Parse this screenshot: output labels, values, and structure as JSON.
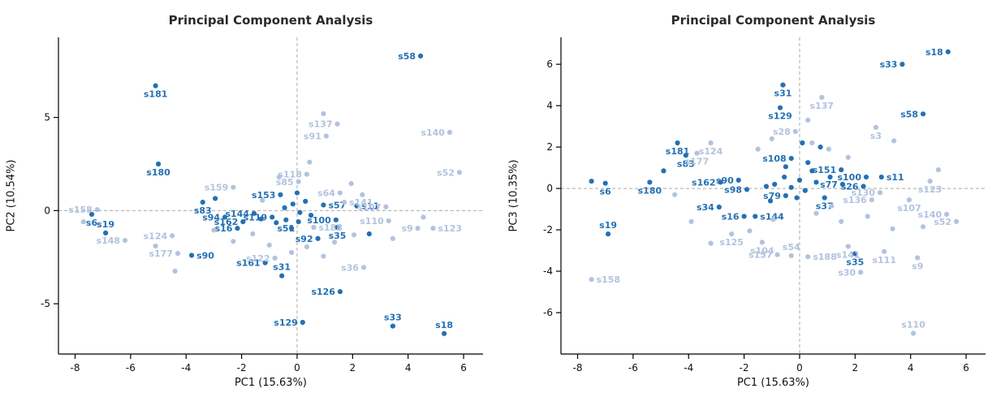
{
  "page": {
    "background": "#ffffff"
  },
  "chart_data": [
    {
      "type": "scatter",
      "title": "Principal Component Analysis",
      "xlabel": "PC1 (15.63%)",
      "ylabel": "PC2 (10.54%)",
      "xlim": [
        -8.6,
        6.7
      ],
      "ylim": [
        -7.7,
        9.3
      ],
      "xticks": [
        -8,
        -6,
        -4,
        -2,
        0,
        2,
        4,
        6
      ],
      "yticks": [
        -5,
        0,
        5
      ],
      "zero_lines": true,
      "grid": false,
      "legend": null,
      "colors": {
        "dark": "#2470b3",
        "light": "#b2c3de"
      },
      "points": [
        {
          "x": 4.45,
          "y": 8.3,
          "c": "dark",
          "label": "s58",
          "pos": "l"
        },
        {
          "x": -5.1,
          "y": 6.7,
          "c": "dark",
          "label": "s181",
          "pos": "b"
        },
        {
          "x": -5.0,
          "y": 2.5,
          "c": "dark",
          "label": "s180",
          "pos": "b"
        },
        {
          "x": -3.4,
          "y": 0.45,
          "c": "dark",
          "label": "s83",
          "pos": "b"
        },
        {
          "x": -7.4,
          "y": -0.2,
          "c": "dark",
          "label": "s6",
          "pos": "b"
        },
        {
          "x": -6.9,
          "y": -1.2,
          "c": "dark",
          "label": "s19",
          "pos": "a"
        },
        {
          "x": -2.6,
          "y": -0.35,
          "c": "dark",
          "label": "s94",
          "pos": "l"
        },
        {
          "x": -1.95,
          "y": -0.6,
          "c": "dark",
          "label": "s162",
          "pos": "l"
        },
        {
          "x": -2.15,
          "y": -0.95,
          "c": "dark",
          "label": "s16",
          "pos": "l"
        },
        {
          "x": -1.55,
          "y": -0.15,
          "c": "dark",
          "label": "s144",
          "pos": "l"
        },
        {
          "x": -1.15,
          "y": -2.8,
          "c": "dark",
          "label": "s161",
          "pos": "l"
        },
        {
          "x": -0.55,
          "y": -3.5,
          "c": "dark",
          "label": "s31",
          "pos": "a"
        },
        {
          "x": 0.2,
          "y": -6.0,
          "c": "dark",
          "label": "s129",
          "pos": "l"
        },
        {
          "x": 1.55,
          "y": -4.35,
          "c": "dark",
          "label": "s126",
          "pos": "l"
        },
        {
          "x": 3.45,
          "y": -6.2,
          "c": "dark",
          "label": "s33",
          "pos": "a"
        },
        {
          "x": 5.3,
          "y": -6.6,
          "c": "dark",
          "label": "s18",
          "pos": "a"
        },
        {
          "x": 1.45,
          "y": -0.9,
          "c": "dark",
          "label": "s35",
          "pos": "b"
        },
        {
          "x": 1.4,
          "y": -0.5,
          "c": "dark",
          "label": "s100",
          "pos": "l"
        },
        {
          "x": 2.15,
          "y": 0.25,
          "c": "dark",
          "label": "s11",
          "pos": "r"
        },
        {
          "x": 0.75,
          "y": -1.5,
          "c": "dark",
          "label": "s92",
          "pos": "l"
        },
        {
          "x": -3.8,
          "y": -2.4,
          "c": "dark",
          "label": "s90",
          "pos": "r"
        },
        {
          "x": -0.6,
          "y": 0.85,
          "c": "dark",
          "label": "s153",
          "pos": "l"
        },
        {
          "x": -0.9,
          "y": -0.35,
          "c": "dark",
          "label": "s119",
          "pos": "l"
        },
        {
          "x": -0.4,
          "y": -0.5,
          "c": "dark",
          "label": "s51",
          "pos": "b"
        },
        {
          "x": 0.95,
          "y": 0.3,
          "c": "dark",
          "label": "s57",
          "pos": "r"
        },
        {
          "x": -0.15,
          "y": 0.35,
          "c": "dark"
        },
        {
          "x": 0.1,
          "y": -0.1,
          "c": "dark"
        },
        {
          "x": -0.45,
          "y": 0.15,
          "c": "dark"
        },
        {
          "x": 0.3,
          "y": 0.5,
          "c": "dark"
        },
        {
          "x": -0.75,
          "y": -0.65,
          "c": "dark"
        },
        {
          "x": 0.5,
          "y": -0.25,
          "c": "dark"
        },
        {
          "x": -0.2,
          "y": -0.95,
          "c": "dark"
        },
        {
          "x": 0.05,
          "y": -0.6,
          "c": "dark"
        },
        {
          "x": -1.3,
          "y": -0.45,
          "c": "dark"
        },
        {
          "x": 2.6,
          "y": -1.25,
          "c": "dark"
        },
        {
          "x": -2.95,
          "y": 0.65,
          "c": "dark"
        },
        {
          "x": 0.0,
          "y": 0.95,
          "c": "dark"
        },
        {
          "x": 1.45,
          "y": 4.65,
          "c": "light",
          "label": "s137",
          "pos": "l"
        },
        {
          "x": 1.05,
          "y": 4.0,
          "c": "light",
          "label": "s91",
          "pos": "l"
        },
        {
          "x": 5.5,
          "y": 4.2,
          "c": "light",
          "label": "s140",
          "pos": "l"
        },
        {
          "x": 5.85,
          "y": 2.05,
          "c": "light",
          "label": "s52",
          "pos": "l"
        },
        {
          "x": 0.35,
          "y": 1.95,
          "c": "light",
          "label": "s118",
          "pos": "l"
        },
        {
          "x": 0.05,
          "y": 1.55,
          "c": "light",
          "label": "s85",
          "pos": "l"
        },
        {
          "x": -2.3,
          "y": 1.25,
          "c": "light",
          "label": "s159",
          "pos": "l"
        },
        {
          "x": 1.55,
          "y": 0.95,
          "c": "light",
          "label": "s64",
          "pos": "l"
        },
        {
          "x": 1.7,
          "y": 0.45,
          "c": "light",
          "label": "s141",
          "pos": "r"
        },
        {
          "x": 3.2,
          "y": 0.2,
          "c": "light",
          "label": "s107",
          "pos": "l"
        },
        {
          "x": 3.3,
          "y": -0.55,
          "c": "light",
          "label": "s110",
          "pos": "l"
        },
        {
          "x": 4.35,
          "y": -0.95,
          "c": "light",
          "label": "s9",
          "pos": "l"
        },
        {
          "x": 4.9,
          "y": -0.95,
          "c": "light",
          "label": "s123",
          "pos": "r"
        },
        {
          "x": 2.4,
          "y": -3.05,
          "c": "light",
          "label": "s36",
          "pos": "l"
        },
        {
          "x": -0.8,
          "y": -2.55,
          "c": "light",
          "label": "s122",
          "pos": "l"
        },
        {
          "x": -4.3,
          "y": -2.3,
          "c": "light",
          "label": "s177",
          "pos": "l"
        },
        {
          "x": -4.5,
          "y": -1.35,
          "c": "light",
          "label": "s124",
          "pos": "l"
        },
        {
          "x": -7.2,
          "y": 0.05,
          "c": "light",
          "label": "s158",
          "pos": "l"
        },
        {
          "x": -6.2,
          "y": -1.6,
          "c": "light",
          "label": "s148",
          "pos": "l"
        },
        {
          "x": 0.6,
          "y": -0.9,
          "c": "light",
          "label": "s188",
          "pos": "r"
        },
        {
          "x": -7.7,
          "y": -0.6,
          "c": "light"
        },
        {
          "x": -5.1,
          "y": -1.9,
          "c": "light"
        },
        {
          "x": -4.4,
          "y": -3.25,
          "c": "light"
        },
        {
          "x": -3.0,
          "y": -1.05,
          "c": "light"
        },
        {
          "x": -2.3,
          "y": -1.65,
          "c": "light"
        },
        {
          "x": -1.6,
          "y": -1.25,
          "c": "light"
        },
        {
          "x": -1.0,
          "y": -1.85,
          "c": "light"
        },
        {
          "x": -0.2,
          "y": -2.25,
          "c": "light"
        },
        {
          "x": 0.35,
          "y": -1.95,
          "c": "light"
        },
        {
          "x": 0.95,
          "y": -2.45,
          "c": "light"
        },
        {
          "x": 1.35,
          "y": -1.7,
          "c": "light"
        },
        {
          "x": 2.05,
          "y": -1.3,
          "c": "light"
        },
        {
          "x": 3.45,
          "y": -1.5,
          "c": "light"
        },
        {
          "x": 0.95,
          "y": 5.2,
          "c": "light"
        },
        {
          "x": 0.45,
          "y": 2.6,
          "c": "light"
        },
        {
          "x": -0.65,
          "y": 1.8,
          "c": "light"
        },
        {
          "x": 1.95,
          "y": 1.45,
          "c": "light"
        },
        {
          "x": 2.35,
          "y": 0.85,
          "c": "light"
        },
        {
          "x": -1.25,
          "y": 0.55,
          "c": "light"
        },
        {
          "x": 4.55,
          "y": -0.35,
          "c": "light"
        }
      ]
    },
    {
      "type": "scatter",
      "title": "Principal Component Analysis",
      "xlabel": "PC1 (15.63%)",
      "ylabel": "PC3 (10.35%)",
      "xlim": [
        -8.6,
        6.7
      ],
      "ylim": [
        -8.0,
        7.3
      ],
      "xticks": [
        -8,
        -6,
        -4,
        -2,
        0,
        2,
        4,
        6
      ],
      "yticks": [
        -6,
        -4,
        -2,
        0,
        2,
        4,
        6
      ],
      "zero_lines": true,
      "grid": false,
      "legend": null,
      "colors": {
        "dark": "#2470b3",
        "light": "#b2c3de"
      },
      "points": [
        {
          "x": 5.35,
          "y": 6.6,
          "c": "dark",
          "label": "s18",
          "pos": "l"
        },
        {
          "x": 3.7,
          "y": 6.0,
          "c": "dark",
          "label": "s33",
          "pos": "l"
        },
        {
          "x": -0.6,
          "y": 5.0,
          "c": "dark",
          "label": "s31",
          "pos": "b"
        },
        {
          "x": -0.7,
          "y": 3.9,
          "c": "dark",
          "label": "s129",
          "pos": "b"
        },
        {
          "x": 4.45,
          "y": 3.6,
          "c": "dark",
          "label": "s58",
          "pos": "l"
        },
        {
          "x": -4.4,
          "y": 2.2,
          "c": "dark",
          "label": "s181",
          "pos": "b"
        },
        {
          "x": -4.1,
          "y": 1.6,
          "c": "dark",
          "label": "s83",
          "pos": "b"
        },
        {
          "x": -5.4,
          "y": 0.3,
          "c": "dark",
          "label": "s180",
          "pos": "b"
        },
        {
          "x": -7.0,
          "y": 0.25,
          "c": "dark",
          "label": "s6",
          "pos": "b"
        },
        {
          "x": -6.9,
          "y": -2.2,
          "c": "dark",
          "label": "s19",
          "pos": "a"
        },
        {
          "x": -2.9,
          "y": -0.9,
          "c": "dark",
          "label": "s34",
          "pos": "l"
        },
        {
          "x": -2.0,
          "y": -1.35,
          "c": "dark",
          "label": "s16",
          "pos": "l"
        },
        {
          "x": -1.6,
          "y": -1.35,
          "c": "dark",
          "label": "s144",
          "pos": "r"
        },
        {
          "x": 2.0,
          "y": -3.15,
          "c": "dark",
          "label": "s35",
          "pos": "b"
        },
        {
          "x": -2.2,
          "y": 0.4,
          "c": "dark",
          "label": "s90",
          "pos": "l"
        },
        {
          "x": -1.9,
          "y": -0.05,
          "c": "dark",
          "label": "s98",
          "pos": "l"
        },
        {
          "x": -2.85,
          "y": 0.3,
          "c": "dark",
          "label": "s162",
          "pos": "l"
        },
        {
          "x": 1.5,
          "y": 0.9,
          "c": "dark",
          "label": "s151",
          "pos": "l"
        },
        {
          "x": 2.4,
          "y": 0.55,
          "c": "dark",
          "label": "s100",
          "pos": "l"
        },
        {
          "x": 2.95,
          "y": 0.55,
          "c": "dark",
          "label": "s11",
          "pos": "r"
        },
        {
          "x": 1.55,
          "y": 0.2,
          "c": "dark",
          "label": "s77",
          "pos": "l"
        },
        {
          "x": 2.3,
          "y": 0.1,
          "c": "dark",
          "label": "s26",
          "pos": "l"
        },
        {
          "x": 0.9,
          "y": -0.45,
          "c": "dark",
          "label": "s37",
          "pos": "b"
        },
        {
          "x": -0.5,
          "y": -0.35,
          "c": "dark",
          "label": "s79",
          "pos": "l"
        },
        {
          "x": -0.3,
          "y": 1.45,
          "c": "dark",
          "label": "s108",
          "pos": "l"
        },
        {
          "x": -7.5,
          "y": 0.35,
          "c": "dark"
        },
        {
          "x": -4.9,
          "y": 0.85,
          "c": "dark"
        },
        {
          "x": -0.9,
          "y": 0.2,
          "c": "dark"
        },
        {
          "x": -0.55,
          "y": 0.55,
          "c": "dark"
        },
        {
          "x": -0.3,
          "y": 0.05,
          "c": "dark"
        },
        {
          "x": 0.0,
          "y": 0.4,
          "c": "dark"
        },
        {
          "x": 0.2,
          "y": -0.1,
          "c": "dark"
        },
        {
          "x": -0.1,
          "y": -0.45,
          "c": "dark"
        },
        {
          "x": 0.45,
          "y": 0.85,
          "c": "dark"
        },
        {
          "x": 0.6,
          "y": 0.3,
          "c": "dark"
        },
        {
          "x": -1.2,
          "y": 0.1,
          "c": "dark"
        },
        {
          "x": -1.05,
          "y": -0.6,
          "c": "dark"
        },
        {
          "x": 0.3,
          "y": 1.25,
          "c": "dark"
        },
        {
          "x": -0.5,
          "y": 1.05,
          "c": "dark"
        },
        {
          "x": 1.1,
          "y": 0.55,
          "c": "dark"
        },
        {
          "x": 0.75,
          "y": 2.0,
          "c": "dark"
        },
        {
          "x": 0.1,
          "y": 2.2,
          "c": "dark"
        },
        {
          "x": 0.8,
          "y": 4.4,
          "c": "light",
          "label": "s137",
          "pos": "b"
        },
        {
          "x": -3.2,
          "y": 2.2,
          "c": "light",
          "label": "s124",
          "pos": "b"
        },
        {
          "x": -3.7,
          "y": 1.7,
          "c": "light",
          "label": "s177",
          "pos": "b"
        },
        {
          "x": 2.75,
          "y": 2.95,
          "c": "light",
          "label": "s3",
          "pos": "b"
        },
        {
          "x": 4.7,
          "y": 0.35,
          "c": "light",
          "label": "s123",
          "pos": "b"
        },
        {
          "x": 3.95,
          "y": -0.55,
          "c": "light",
          "label": "s107",
          "pos": "b"
        },
        {
          "x": 2.9,
          "y": -0.2,
          "c": "light",
          "label": "s130",
          "pos": "l"
        },
        {
          "x": 2.6,
          "y": -0.55,
          "c": "light",
          "label": "s136",
          "pos": "l"
        },
        {
          "x": 5.3,
          "y": -1.25,
          "c": "light",
          "label": "s140",
          "pos": "l"
        },
        {
          "x": 5.65,
          "y": -1.6,
          "c": "light",
          "label": "s52",
          "pos": "l"
        },
        {
          "x": -2.45,
          "y": -2.2,
          "c": "light",
          "label": "s125",
          "pos": "b"
        },
        {
          "x": -1.35,
          "y": -2.6,
          "c": "light",
          "label": "s104",
          "pos": "b"
        },
        {
          "x": -0.8,
          "y": -3.2,
          "c": "light",
          "label": "s157",
          "pos": "l"
        },
        {
          "x": -0.3,
          "y": -3.25,
          "c": "light",
          "label": "s54",
          "pos": "a"
        },
        {
          "x": 0.3,
          "y": -3.3,
          "c": "light",
          "label": "s188",
          "pos": "r"
        },
        {
          "x": 1.75,
          "y": -2.8,
          "c": "light",
          "label": "s141",
          "pos": "b"
        },
        {
          "x": 3.05,
          "y": -3.05,
          "c": "light",
          "label": "s111",
          "pos": "b"
        },
        {
          "x": 4.25,
          "y": -3.35,
          "c": "light",
          "label": "s9",
          "pos": "b"
        },
        {
          "x": 2.2,
          "y": -4.05,
          "c": "light",
          "label": "s30",
          "pos": "l"
        },
        {
          "x": -7.5,
          "y": -4.4,
          "c": "light",
          "label": "s158",
          "pos": "r"
        },
        {
          "x": 4.1,
          "y": -7.0,
          "c": "light",
          "label": "s110",
          "pos": "a"
        },
        {
          "x": -0.15,
          "y": 2.75,
          "c": "light",
          "label": "s28",
          "pos": "l"
        },
        {
          "x": -4.5,
          "y": -0.3,
          "c": "light"
        },
        {
          "x": -3.9,
          "y": -1.6,
          "c": "light"
        },
        {
          "x": -3.2,
          "y": -2.65,
          "c": "light"
        },
        {
          "x": -1.8,
          "y": -2.05,
          "c": "light"
        },
        {
          "x": -0.95,
          "y": -1.5,
          "c": "light"
        },
        {
          "x": 0.6,
          "y": -1.2,
          "c": "light"
        },
        {
          "x": 1.15,
          "y": -0.85,
          "c": "light"
        },
        {
          "x": 1.5,
          "y": -1.6,
          "c": "light"
        },
        {
          "x": 2.45,
          "y": -1.35,
          "c": "light"
        },
        {
          "x": 3.35,
          "y": -1.95,
          "c": "light"
        },
        {
          "x": 4.45,
          "y": -1.85,
          "c": "light"
        },
        {
          "x": -1.5,
          "y": 1.9,
          "c": "light"
        },
        {
          "x": 0.45,
          "y": 2.2,
          "c": "light"
        },
        {
          "x": 1.05,
          "y": 1.9,
          "c": "light"
        },
        {
          "x": 1.75,
          "y": 1.5,
          "c": "light"
        },
        {
          "x": 3.4,
          "y": 2.3,
          "c": "light"
        },
        {
          "x": 0.3,
          "y": 3.3,
          "c": "light"
        },
        {
          "x": -1.0,
          "y": 2.4,
          "c": "light"
        },
        {
          "x": 5.0,
          "y": 0.9,
          "c": "light"
        }
      ]
    }
  ]
}
